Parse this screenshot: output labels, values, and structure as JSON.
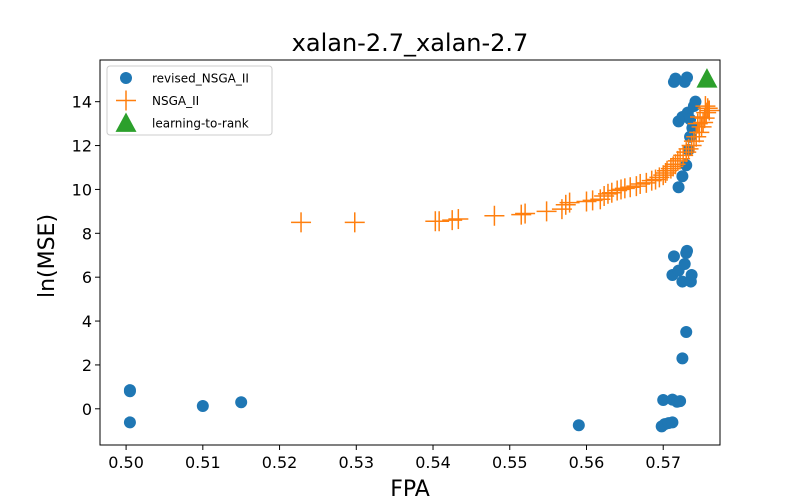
{
  "chart_data": {
    "type": "scatter",
    "title": "xalan-2.7_xalan-2.7",
    "xlabel": "FPA",
    "ylabel": "ln(MSE)",
    "xlim": [
      0.4966,
      0.5774
    ],
    "ylim": [
      -1.65,
      15.9
    ],
    "x_ticks": [
      0.5,
      0.51,
      0.52,
      0.53,
      0.54,
      0.55,
      0.56,
      0.57
    ],
    "x_tick_labels": [
      "0.50",
      "0.51",
      "0.52",
      "0.53",
      "0.54",
      "0.55",
      "0.56",
      "0.57"
    ],
    "y_ticks": [
      0,
      2,
      4,
      6,
      8,
      10,
      12,
      14
    ],
    "y_tick_labels": [
      "0",
      "2",
      "4",
      "6",
      "8",
      "10",
      "12",
      "14"
    ],
    "grid": false,
    "legend_position": "top-left",
    "series": [
      {
        "name": "revised_NSGA_II",
        "marker": "circle",
        "color": "#1f77b4",
        "points": [
          [
            0.5005,
            0.85
          ],
          [
            0.5005,
            0.8
          ],
          [
            0.5005,
            -0.62
          ],
          [
            0.51,
            0.13
          ],
          [
            0.515,
            0.3
          ],
          [
            0.559,
            -0.75
          ],
          [
            0.5698,
            -0.8
          ],
          [
            0.5702,
            -0.7
          ],
          [
            0.5707,
            -0.65
          ],
          [
            0.5712,
            -0.62
          ],
          [
            0.57,
            0.4
          ],
          [
            0.5712,
            0.42
          ],
          [
            0.5718,
            0.32
          ],
          [
            0.5722,
            0.35
          ],
          [
            0.5725,
            2.3
          ],
          [
            0.573,
            3.5
          ],
          [
            0.5712,
            6.1
          ],
          [
            0.5714,
            6.95
          ],
          [
            0.572,
            6.3
          ],
          [
            0.5725,
            5.8
          ],
          [
            0.5728,
            6.6
          ],
          [
            0.573,
            7.1
          ],
          [
            0.5731,
            7.2
          ],
          [
            0.5736,
            5.8
          ],
          [
            0.5737,
            6.1
          ],
          [
            0.572,
            10.1
          ],
          [
            0.5725,
            10.6
          ],
          [
            0.573,
            11.1
          ],
          [
            0.5733,
            11.8
          ],
          [
            0.5735,
            12.4
          ],
          [
            0.5738,
            12.8
          ],
          [
            0.572,
            13.1
          ],
          [
            0.5725,
            13.3
          ],
          [
            0.5732,
            13.5
          ],
          [
            0.5735,
            13.2
          ],
          [
            0.574,
            13.8
          ],
          [
            0.5742,
            14.0
          ],
          [
            0.5714,
            14.9
          ],
          [
            0.5716,
            15.05
          ],
          [
            0.5728,
            14.9
          ],
          [
            0.5731,
            15.1
          ]
        ]
      },
      {
        "name": "NSGA_II",
        "marker": "plus",
        "color": "#ff7f0e",
        "points": [
          [
            0.5228,
            8.5
          ],
          [
            0.5298,
            8.5
          ],
          [
            0.5403,
            8.55
          ],
          [
            0.5408,
            8.55
          ],
          [
            0.5425,
            8.6
          ],
          [
            0.5433,
            8.65
          ],
          [
            0.548,
            8.8
          ],
          [
            0.5515,
            8.85
          ],
          [
            0.552,
            8.9
          ],
          [
            0.5548,
            9.0
          ],
          [
            0.5568,
            9.1
          ],
          [
            0.5573,
            9.3
          ],
          [
            0.5578,
            9.4
          ],
          [
            0.56,
            9.45
          ],
          [
            0.5608,
            9.5
          ],
          [
            0.5618,
            9.55
          ],
          [
            0.5623,
            9.7
          ],
          [
            0.5628,
            9.8
          ],
          [
            0.5633,
            9.85
          ],
          [
            0.564,
            9.95
          ],
          [
            0.5645,
            10.0
          ],
          [
            0.565,
            10.05
          ],
          [
            0.5657,
            10.1
          ],
          [
            0.5665,
            10.15
          ],
          [
            0.567,
            10.25
          ],
          [
            0.5678,
            10.3
          ],
          [
            0.5685,
            10.4
          ],
          [
            0.569,
            10.45
          ],
          [
            0.5695,
            10.55
          ],
          [
            0.57,
            10.65
          ],
          [
            0.5703,
            10.75
          ],
          [
            0.5705,
            10.85
          ],
          [
            0.571,
            10.95
          ],
          [
            0.5713,
            11.05
          ],
          [
            0.5716,
            11.15
          ],
          [
            0.5719,
            11.3
          ],
          [
            0.5722,
            11.4
          ],
          [
            0.5726,
            11.55
          ],
          [
            0.573,
            11.7
          ],
          [
            0.5733,
            11.85
          ],
          [
            0.5737,
            12.0
          ],
          [
            0.574,
            12.2
          ],
          [
            0.5743,
            12.4
          ],
          [
            0.5747,
            12.6
          ],
          [
            0.575,
            12.85
          ],
          [
            0.5752,
            13.05
          ],
          [
            0.5754,
            13.25
          ],
          [
            0.5756,
            13.5
          ],
          [
            0.5758,
            13.7
          ],
          [
            0.576,
            13.6
          ],
          [
            0.5748,
            13.3
          ],
          [
            0.5745,
            13.0
          ],
          [
            0.5755,
            13.8
          ]
        ]
      },
      {
        "name": "learning-to-rank",
        "marker": "triangle",
        "color": "#2ca02c",
        "points": [
          [
            0.5757,
            15.05
          ]
        ]
      }
    ]
  }
}
